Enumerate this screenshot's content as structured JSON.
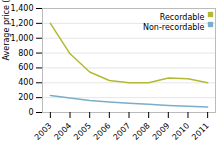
{
  "chart_data": {
    "type": "line",
    "ylabel": "Average price ($)",
    "x": [
      2003,
      2004,
      2005,
      2006,
      2007,
      2008,
      2009,
      2010,
      2011
    ],
    "series": [
      {
        "name": "Recordable",
        "color": "#b5b832",
        "values": [
          1200,
          790,
          545,
          430,
          400,
          400,
          465,
          455,
          400
        ]
      },
      {
        "name": "Non-recordable",
        "color": "#7aaec8",
        "values": [
          230,
          195,
          160,
          140,
          125,
          110,
          95,
          85,
          75
        ]
      }
    ],
    "xlim": [
      2002.6,
      2011.4
    ],
    "xticks": [
      2003,
      2004,
      2005,
      2006,
      2007,
      2008,
      2009,
      2010,
      2011
    ],
    "ylim": [
      0,
      1400
    ],
    "yticks": [
      0,
      200,
      400,
      600,
      800,
      {
        "value": 1000,
        "label": "1,000"
      },
      {
        "value": 1200,
        "label": "1,200"
      },
      {
        "value": 1400,
        "label": "1,400"
      }
    ],
    "grid": true,
    "legend": "upper right"
  }
}
